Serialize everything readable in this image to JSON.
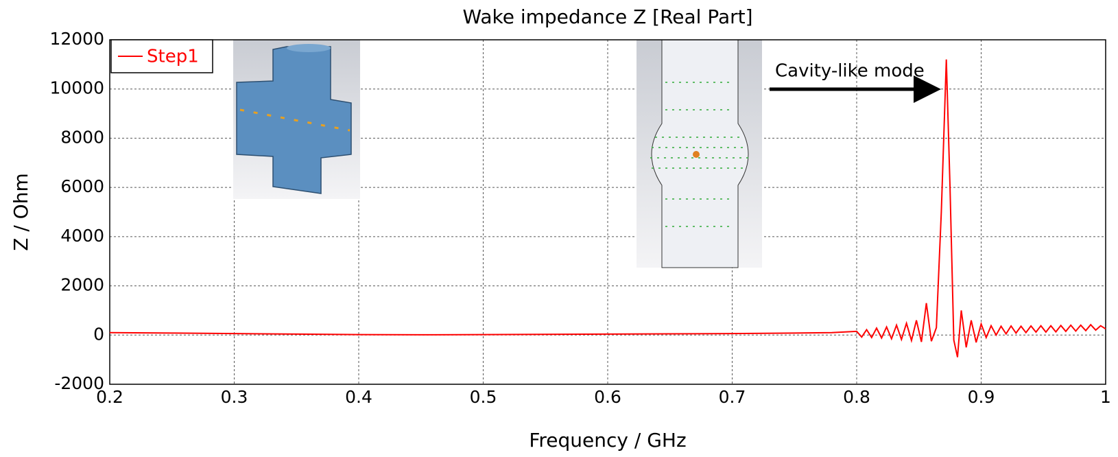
{
  "chart_data": {
    "type": "line",
    "title": "Wake impedance Z [Real Part]",
    "x_label": "Frequency / GHz",
    "y_label": "Z / Ohm",
    "annotations": [
      {
        "text": "Cavity-like mode"
      }
    ],
    "x": [
      0.2,
      0.25,
      0.3,
      0.35,
      0.4,
      0.45,
      0.5,
      0.55,
      0.6,
      0.65,
      0.7,
      0.75,
      0.78,
      0.8,
      0.804,
      0.808,
      0.812,
      0.816,
      0.82,
      0.824,
      0.828,
      0.832,
      0.836,
      0.84,
      0.844,
      0.848,
      0.852,
      0.856,
      0.86,
      0.864,
      0.868,
      0.872,
      0.875,
      0.878,
      0.881,
      0.884,
      0.888,
      0.892,
      0.896,
      0.9,
      0.904,
      0.908,
      0.912,
      0.916,
      0.92,
      0.924,
      0.928,
      0.932,
      0.936,
      0.94,
      0.944,
      0.948,
      0.952,
      0.956,
      0.96,
      0.964,
      0.968,
      0.972,
      0.976,
      0.98,
      0.984,
      0.988,
      0.992,
      0.996,
      1.0
    ],
    "series": [
      {
        "name": "Step1",
        "color": "#ff0000",
        "values": [
          100,
          80,
          60,
          40,
          20,
          10,
          20,
          30,
          40,
          50,
          60,
          80,
          100,
          150,
          -80,
          220,
          -100,
          280,
          -120,
          330,
          -150,
          400,
          -180,
          480,
          -220,
          600,
          -280,
          1300,
          -250,
          300,
          5000,
          11200,
          6000,
          -200,
          -900,
          1000,
          -500,
          600,
          -300,
          450,
          -100,
          380,
          0,
          360,
          50,
          370,
          80,
          360,
          100,
          370,
          120,
          380,
          120,
          380,
          130,
          390,
          150,
          400,
          160,
          400,
          180,
          420,
          200,
          380,
          250
        ]
      }
    ],
    "xlim": [
      0.2,
      1
    ],
    "xticks": [
      0.2,
      0.3,
      0.4,
      0.5,
      0.6,
      0.7,
      0.8,
      0.9,
      1
    ],
    "ylim": [
      -2000,
      12000
    ],
    "yticks": [
      -2000,
      0,
      2000,
      4000,
      6000,
      8000,
      10000,
      12000
    ],
    "grid": true,
    "legend": "upper-left"
  }
}
